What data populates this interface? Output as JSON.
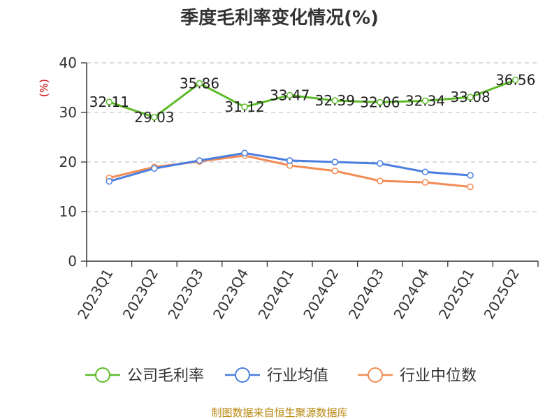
{
  "chart_data": {
    "type": "line",
    "title": "季度毛利率变化情况(%)",
    "ylabel": "(%)",
    "xlabel": "",
    "categories": [
      "2023Q1",
      "2023Q2",
      "2023Q3",
      "2023Q4",
      "2024Q1",
      "2024Q2",
      "2024Q3",
      "2024Q4",
      "2025Q1",
      "2025Q2"
    ],
    "ylim": [
      0,
      40
    ],
    "yticks": [
      "0",
      "10",
      "20",
      "30",
      "40"
    ],
    "grid": true,
    "legend_position": "bottom",
    "series": [
      {
        "name": "公司毛利率",
        "color": "#5dbb2a",
        "values": [
          32.11,
          29.03,
          35.86,
          31.12,
          33.47,
          32.39,
          32.06,
          32.34,
          33.08,
          36.56
        ],
        "labels": [
          "32.11",
          "29.03",
          "35.86",
          "31.12",
          "33.47",
          "32.39",
          "32.06",
          "32.34",
          "33.08",
          "36.56"
        ]
      },
      {
        "name": "行业均值",
        "color": "#4a7fe0",
        "values": [
          16.1,
          18.7,
          20.3,
          21.8,
          20.3,
          20.0,
          19.7,
          18.0,
          17.3,
          null
        ]
      },
      {
        "name": "行业中位数",
        "color": "#f28b54",
        "values": [
          16.8,
          19.0,
          20.1,
          21.3,
          19.3,
          18.2,
          16.2,
          15.9,
          15.0,
          null
        ]
      }
    ],
    "source": "制图数据来自恒生聚源数据库"
  }
}
